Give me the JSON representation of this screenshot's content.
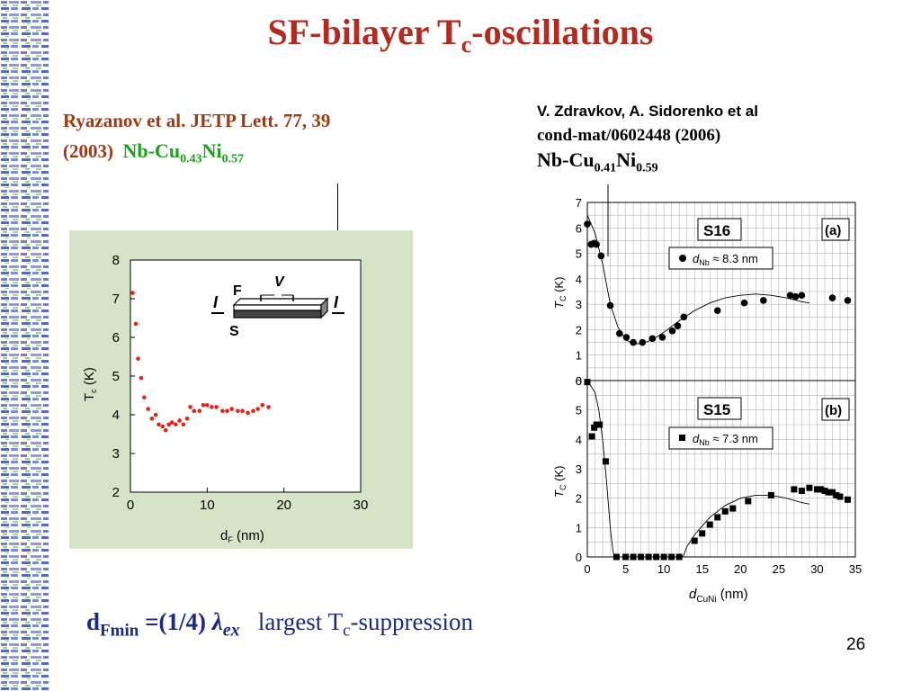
{
  "slide": {
    "title_main": "SF-bilayer T",
    "title_sub": "c",
    "title_end": "-oscillations",
    "number": "26"
  },
  "ref_left": {
    "line1": "Ryazanov  et al.  JETP Lett. 77, 39",
    "line2": "(2003)",
    "mat_nb": "Nb-Cu",
    "mat_cu_sub": "0.43",
    "mat_ni": "Ni",
    "mat_ni_sub": "0.57"
  },
  "ref_right": {
    "line1": "V. Zdravkov, A. Sidorenko et al",
    "line2": "cond-mat/0602448 (2006)",
    "mat_nb": "Nb-Cu",
    "mat_cu_sub": "0.41",
    "mat_ni": "Ni",
    "mat_ni_sub": "0.59"
  },
  "formula": {
    "d": "d",
    "sub_f": "F",
    "sub_min": "min",
    "eq": " =(1/4) ",
    "lambda": "λ",
    "ex": "ex",
    "desc_a": "largest   T",
    "desc_sub": "c",
    "desc_b": "-suppression"
  },
  "chart_data": [
    {
      "type": "scatter",
      "xlabel": "d",
      "xlabel_sub": "F",
      "xlabel_unit": " (nm)",
      "ylabel": "T",
      "ylabel_sub": "c",
      "ylabel_unit": " (K)",
      "xlim": [
        0,
        30
      ],
      "ylim": [
        2,
        8
      ],
      "xticks": [
        0,
        10,
        20,
        30
      ],
      "yticks": [
        2,
        3,
        4,
        5,
        6,
        7,
        8
      ],
      "inset": {
        "F": "F",
        "V": "V",
        "S": "S",
        "I_left": "I",
        "I_right": "I"
      },
      "series": [
        {
          "color": "#e8201a",
          "x": [
            0.3,
            0.7,
            1.0,
            1.4,
            1.8,
            2.3,
            2.8,
            3.3,
            3.7,
            4.2,
            4.6,
            5.0,
            5.4,
            5.9,
            6.4,
            6.9,
            7.4,
            7.8,
            8.3,
            9.0,
            9.5,
            10.0,
            10.6,
            11.2,
            12.0,
            12.6,
            13.2,
            14.0,
            14.6,
            15.3,
            16.0,
            16.6,
            17.2,
            18.0
          ],
          "y": [
            7.15,
            6.35,
            5.45,
            4.95,
            4.45,
            4.15,
            3.9,
            4.0,
            3.75,
            3.7,
            3.6,
            3.75,
            3.8,
            3.75,
            3.85,
            3.75,
            3.9,
            4.2,
            4.1,
            4.1,
            4.25,
            4.25,
            4.2,
            4.2,
            4.1,
            4.1,
            4.15,
            4.1,
            4.1,
            4.05,
            4.1,
            4.15,
            4.25,
            4.2
          ]
        }
      ]
    },
    {
      "type": "scatter",
      "panel_label": "(a)",
      "sample": "S16",
      "legend": {
        "d": "d",
        "sub": "Nb",
        "value": " ≈ 8.3 nm"
      },
      "xlim": [
        0,
        35
      ],
      "ylim": [
        0,
        7
      ],
      "yticks": [
        0,
        1,
        2,
        3,
        4,
        5,
        6,
        7
      ],
      "ylabel": "T",
      "ylabel_sub": "C",
      "ylabel_unit": " (K)",
      "series": [
        {
          "marker": "circle",
          "x": [
            0,
            0.5,
            0.9,
            1.2,
            1.8,
            3.0,
            4.2,
            5.1,
            6.0,
            7.2,
            8.5,
            9.8,
            11.1,
            11.8,
            12.6,
            17.0,
            20.5,
            23.0,
            26.5,
            27.2,
            28.0,
            32.0,
            34.0
          ],
          "y": [
            6.15,
            5.35,
            5.4,
            5.35,
            4.9,
            2.95,
            1.85,
            1.7,
            1.5,
            1.5,
            1.65,
            1.7,
            1.95,
            2.15,
            2.5,
            2.75,
            3.05,
            3.15,
            3.35,
            3.3,
            3.35,
            3.25,
            3.15
          ]
        }
      ],
      "fit": {
        "x": [
          0,
          1,
          2,
          3,
          4,
          5,
          6,
          7,
          8,
          9,
          10,
          12,
          14,
          16,
          18,
          20,
          22,
          24,
          26,
          28,
          29
        ],
        "y": [
          6.5,
          5.8,
          4.6,
          3.0,
          2.1,
          1.6,
          1.45,
          1.45,
          1.55,
          1.7,
          1.9,
          2.35,
          2.75,
          3.05,
          3.25,
          3.35,
          3.4,
          3.35,
          3.25,
          3.1,
          3.05
        ]
      }
    },
    {
      "type": "scatter",
      "panel_label": "(b)",
      "sample": "S15",
      "legend": {
        "d": "d",
        "sub": "Nb",
        "value": " ≈ 7.3 nm"
      },
      "xlim": [
        0,
        35
      ],
      "ylim": [
        0,
        6
      ],
      "xticks": [
        0,
        5,
        10,
        15,
        20,
        25,
        30,
        35
      ],
      "yticks": [
        0,
        1,
        2,
        3,
        4,
        5,
        6
      ],
      "xlabel": "d",
      "xlabel_sub": "CuNi",
      "xlabel_unit": " (nm)",
      "ylabel": "T",
      "ylabel_sub": "C",
      "ylabel_unit": " (K)",
      "series": [
        {
          "marker": "square",
          "x": [
            0,
            0.6,
            0.9,
            1.2,
            1.6,
            2.4,
            3.8,
            5.0,
            6.0,
            7.0,
            8.0,
            9.0,
            10.0,
            11.0,
            12.0,
            14.0,
            15.0,
            16.0,
            17.0,
            18.0,
            19.0,
            21.0,
            24.0,
            27.0,
            28.0,
            29.0,
            30.0,
            30.5,
            31.0,
            31.5,
            32.0,
            32.5,
            33.0,
            34.0
          ],
          "y": [
            5.95,
            4.1,
            4.4,
            4.5,
            4.5,
            3.25,
            0,
            0,
            0,
            0,
            0,
            0,
            0,
            0,
            0,
            0.55,
            0.8,
            1.1,
            1.35,
            1.55,
            1.65,
            1.9,
            2.1,
            2.3,
            2.25,
            2.35,
            2.3,
            2.3,
            2.25,
            2.2,
            2.2,
            2.1,
            2.05,
            1.95
          ]
        }
      ],
      "fit": {
        "x": [
          0,
          1,
          1.5,
          2.0,
          2.5,
          3.0,
          3.3,
          3.5
        ],
        "y": [
          6.0,
          5.6,
          5.0,
          4.0,
          2.6,
          1.0,
          0.3,
          0
        ],
        "x2": [
          12.5,
          13,
          14,
          15,
          16,
          18,
          20,
          22,
          24,
          26,
          28,
          29
        ],
        "y2": [
          0,
          0.35,
          0.75,
          1.05,
          1.35,
          1.75,
          2.0,
          2.1,
          2.1,
          2.0,
          1.85,
          1.8
        ]
      }
    }
  ]
}
